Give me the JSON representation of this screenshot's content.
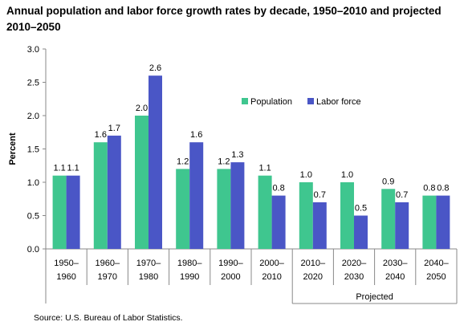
{
  "chart_data": {
    "type": "bar",
    "title": "Annual population and labor force growth rates by decade, 1950–2010 and projected 2010–2050",
    "ylabel": "Percent",
    "xlabel": "",
    "ylim": [
      0,
      3.0
    ],
    "yticks": [
      "0.0",
      "0.5",
      "1.0",
      "1.5",
      "2.0",
      "2.5",
      "3.0"
    ],
    "categories": [
      [
        "1950–",
        "1960"
      ],
      [
        "1960–",
        "1970"
      ],
      [
        "1970–",
        "1980"
      ],
      [
        "1980–",
        "1990"
      ],
      [
        "1990–",
        "2000"
      ],
      [
        "2000–",
        "2010"
      ],
      [
        "2010–",
        "2020"
      ],
      [
        "2020–",
        "2030"
      ],
      [
        "2030–",
        "2040"
      ],
      [
        "2040–",
        "2050"
      ]
    ],
    "series": [
      {
        "name": "Population",
        "color": "#3fc68f",
        "values": [
          1.1,
          1.6,
          2.0,
          1.2,
          1.2,
          1.1,
          1.0,
          1.0,
          0.9,
          0.8
        ]
      },
      {
        "name": "Labor force",
        "color": "#4a56c6",
        "values": [
          1.1,
          1.7,
          2.6,
          1.6,
          1.3,
          0.8,
          0.7,
          0.5,
          0.7,
          0.8
        ]
      }
    ],
    "group_label": "Projected",
    "group_range": [
      6,
      9
    ],
    "legend_position": "upper-right",
    "grid": false
  },
  "source": "Source: U.S. Bureau of Labor Statistics."
}
